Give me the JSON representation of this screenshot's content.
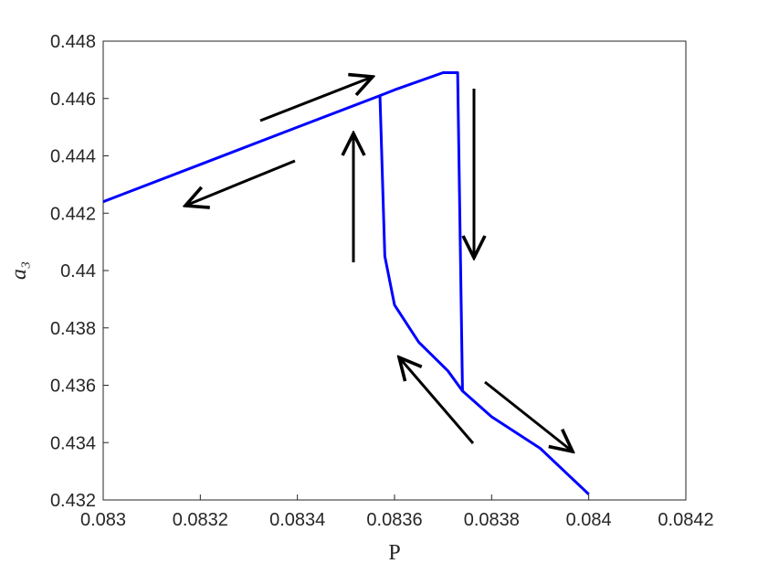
{
  "chart_data": {
    "type": "line",
    "xlabel": "P",
    "ylabel": "a₃",
    "xlim": [
      0.083,
      0.0842
    ],
    "xticks": [
      0.083,
      0.0832,
      0.0834,
      0.0836,
      0.0838,
      0.084,
      0.0842
    ],
    "ylim": [
      0.432,
      0.448
    ],
    "yticks": [
      0.432,
      0.434,
      0.436,
      0.438,
      0.44,
      0.442,
      0.444,
      0.446,
      0.448
    ],
    "grid": false,
    "series": [
      {
        "color": "#0000ff",
        "x": [
          0.083,
          0.0832,
          0.0834,
          0.08357,
          0.0836,
          0.0837,
          0.08373,
          0.08374,
          0.0838,
          0.0839,
          0.084,
          null,
          0.08357,
          0.08358,
          0.0836,
          0.08365,
          0.08371,
          0.08374
        ],
        "values": [
          0.4424,
          0.4437,
          0.445,
          0.4461,
          0.4463,
          0.4469,
          0.4469,
          0.4358,
          0.4349,
          0.4338,
          0.4322,
          null,
          0.4461,
          0.4405,
          0.4388,
          0.4375,
          0.4365,
          0.4358
        ]
      }
    ]
  }
}
